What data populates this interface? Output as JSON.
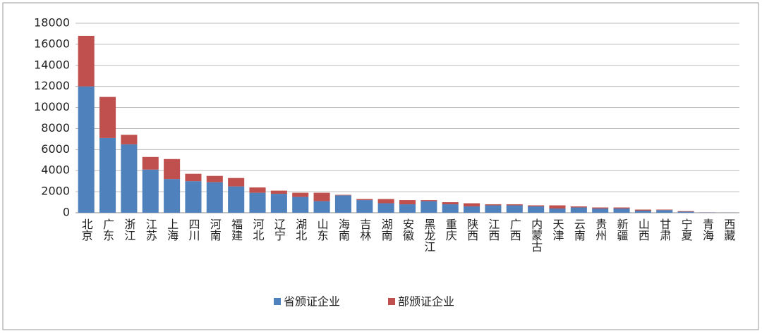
{
  "chart_data": {
    "type": "stacked_bar",
    "categories": [
      "北京",
      "广东",
      "浙江",
      "江苏",
      "上海",
      "四川",
      "河南",
      "福建",
      "河北",
      "辽宁",
      "湖北",
      "山东",
      "海南",
      "吉林",
      "湖南",
      "安徽",
      "黑龙江",
      "重庆",
      "陕西",
      "江西",
      "广西",
      "内蒙古",
      "天津",
      "云南",
      "贵州",
      "新疆",
      "山西",
      "甘肃",
      "宁夏",
      "青海",
      "西藏"
    ],
    "series": [
      {
        "name": "省颁证企业",
        "color": "#4f81bd",
        "values": [
          12000,
          7100,
          6500,
          4100,
          3200,
          3000,
          2900,
          2500,
          1900,
          1800,
          1500,
          1100,
          1650,
          1200,
          900,
          800,
          1100,
          800,
          600,
          700,
          700,
          600,
          400,
          500,
          400,
          400,
          200,
          250,
          100,
          30,
          20
        ]
      },
      {
        "name": "部颁证企业",
        "color": "#c0504d",
        "values": [
          4800,
          3900,
          900,
          1200,
          1900,
          700,
          600,
          800,
          500,
          300,
          400,
          800,
          50,
          100,
          400,
          400,
          100,
          200,
          300,
          100,
          100,
          100,
          300,
          100,
          100,
          100,
          100,
          50,
          50,
          10,
          10
        ]
      }
    ],
    "ylim": [
      0,
      18000
    ],
    "yticks": [
      0,
      2000,
      4000,
      6000,
      8000,
      10000,
      12000,
      14000,
      16000,
      18000
    ],
    "grid": true,
    "legend": "bottom"
  }
}
